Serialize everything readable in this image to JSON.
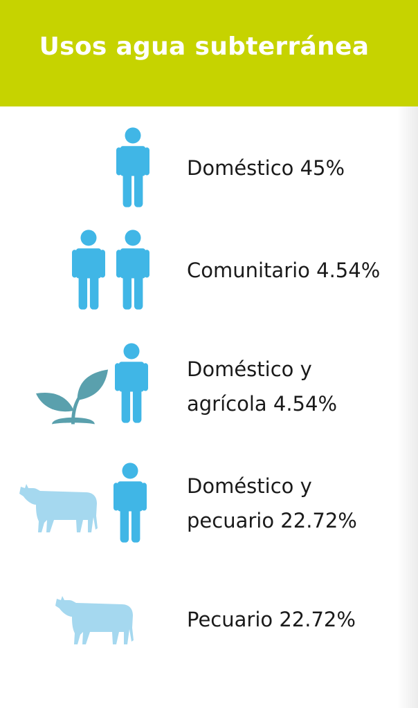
{
  "title": "Usos agua subterránea",
  "colors": {
    "header": "#c6d300",
    "person": "#40b6e6",
    "plant": "#5aa0ad",
    "cow": "#a5d8ef"
  },
  "items": [
    {
      "line1": "Doméstico 45%",
      "line2": "",
      "icons": [
        "person-icon"
      ]
    },
    {
      "line1": "Comunitario 4.54%",
      "line2": "",
      "icons": [
        "person-icon",
        "person-icon"
      ]
    },
    {
      "line1": "Doméstico y",
      "line2": "agrícola 4.54%",
      "icons": [
        "plant-icon",
        "person-icon"
      ]
    },
    {
      "line1": "Doméstico y",
      "line2": "pecuario 22.72%",
      "icons": [
        "cow-icon",
        "person-icon"
      ]
    },
    {
      "line1": "Pecuario 22.72%",
      "line2": "",
      "icons": [
        "cow-icon"
      ]
    }
  ]
}
